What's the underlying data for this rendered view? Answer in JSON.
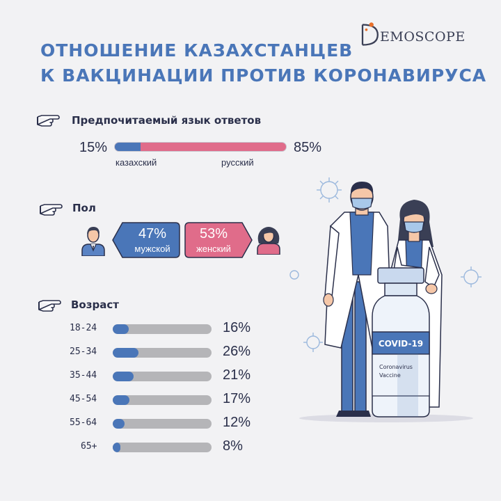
{
  "header": {
    "title_line1": "ОТНОШЕНИЕ КАЗАХСТАНЦЕВ",
    "title_line2": "К ВАКЦИНАЦИИ ПРОТИВ КОРОНАВИРУСА",
    "logo_text": "EMOSCOPE"
  },
  "colors": {
    "blue": "#4a76b8",
    "pink": "#e06c8a",
    "gray": "#b5b5b8"
  },
  "language": {
    "title": "Предпочитаемый язык ответов",
    "kazakh_pct_text": "15%",
    "russian_pct_text": "85%",
    "kazakh_label": "казахский",
    "russian_label": "русский"
  },
  "gender": {
    "title": "Пол",
    "male_pct_text": "47%",
    "male_label": "мужской",
    "female_pct_text": "53%",
    "female_label": "женский"
  },
  "age": {
    "title": "Возраст"
  },
  "vial": {
    "label": "COVID-19",
    "sub1": "Coronavirus",
    "sub2": "Vaccine"
  },
  "chart_data": [
    {
      "type": "bar",
      "title": "Предпочитаемый язык ответов",
      "categories": [
        "казахский",
        "русский"
      ],
      "values": [
        15,
        85
      ]
    },
    {
      "type": "bar",
      "title": "Пол",
      "categories": [
        "мужской",
        "женский"
      ],
      "values": [
        47,
        53
      ]
    },
    {
      "type": "bar",
      "title": "Возраст",
      "categories": [
        "18-24",
        "25-34",
        "35-44",
        "45-54",
        "55-64",
        "65+"
      ],
      "values": [
        16,
        26,
        21,
        17,
        12,
        8
      ],
      "value_labels": [
        "16%",
        "26%",
        "21%",
        "17%",
        "12%",
        "8%"
      ]
    }
  ]
}
